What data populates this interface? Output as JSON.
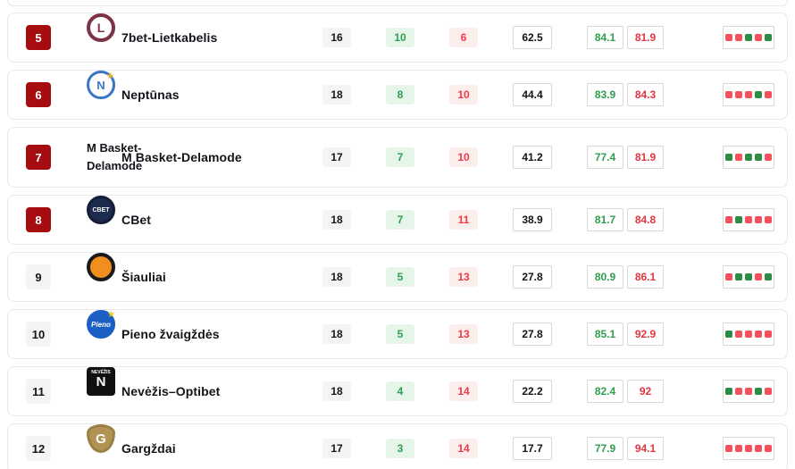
{
  "table": {
    "colors": {
      "rank_highlight_bg": "#a50d10",
      "rank_default_bg": "#f4f4f5",
      "wins_text": "#2f9e50",
      "wins_bg": "#e6f5ea",
      "losses_text": "#ee3a45",
      "losses_bg": "#fdeeee",
      "points_for_text": "#2f9e50",
      "points_against_text": "#e23540",
      "form_win_square": "#2e8b46",
      "form_loss_square": "#f4515c",
      "card_border": "#e8e8ea",
      "box_border": "#d8d8d8"
    },
    "rows": [
      {
        "rank": "5",
        "rank_highlight": true,
        "name": "7bet-Lietkabelis",
        "games": "16",
        "wins": "10",
        "losses": "6",
        "win_pct": "62.5",
        "pts_for": "84.1",
        "pts_against": "81.9",
        "form": [
          "L",
          "L",
          "W",
          "L",
          "W"
        ],
        "logo": {
          "shape": "circle",
          "bg": "#ffffff",
          "ring": "#7d3246",
          "ring_width": 4,
          "text": "L",
          "text_color": "#7d3246",
          "font_size": 14
        }
      },
      {
        "rank": "6",
        "rank_highlight": true,
        "name": "Neptūnas",
        "games": "18",
        "wins": "8",
        "losses": "10",
        "win_pct": "44.4",
        "pts_for": "83.9",
        "pts_against": "84.3",
        "form": [
          "L",
          "L",
          "L",
          "W",
          "L"
        ],
        "logo": {
          "shape": "circle",
          "bg": "#ffffff",
          "ring": "#3a76c4",
          "ring_width": 3,
          "text": "N",
          "text_color": "#3a76c4",
          "font_size": 13,
          "star_color": "#f0b429"
        }
      },
      {
        "rank": "7",
        "rank_highlight": true,
        "name": "M Basket-Delamode",
        "tall": true,
        "games": "17",
        "wins": "7",
        "losses": "10",
        "win_pct": "41.2",
        "pts_for": "77.4",
        "pts_against": "81.9",
        "form": [
          "W",
          "L",
          "W",
          "W",
          "L"
        ],
        "logo": {
          "shape": "alt",
          "alt_text": "M Basket-Delamode"
        }
      },
      {
        "rank": "8",
        "rank_highlight": true,
        "name": "CBet",
        "games": "18",
        "wins": "7",
        "losses": "11",
        "win_pct": "38.9",
        "pts_for": "81.7",
        "pts_against": "84.8",
        "form": [
          "L",
          "W",
          "L",
          "L",
          "L"
        ],
        "logo": {
          "shape": "circle",
          "bg": "#1d2b4e",
          "ring": "#141e38",
          "ring_width": 3,
          "text": "CBET",
          "text_color": "#ffffff",
          "font_size": 7
        }
      },
      {
        "rank": "9",
        "rank_highlight": false,
        "name": "Šiauliai",
        "games": "18",
        "wins": "5",
        "losses": "13",
        "win_pct": "27.8",
        "pts_for": "80.9",
        "pts_against": "86.1",
        "form": [
          "L",
          "W",
          "W",
          "L",
          "W"
        ],
        "logo": {
          "shape": "circle",
          "bg": "#f08e1e",
          "ring": "#1a1a1a",
          "ring_width": 4,
          "text": "",
          "text_color": "#1a1a1a",
          "font_size": 10
        }
      },
      {
        "rank": "10",
        "rank_highlight": false,
        "name": "Pieno žvaigždės",
        "games": "18",
        "wins": "5",
        "losses": "13",
        "win_pct": "27.8",
        "pts_for": "85.1",
        "pts_against": "92.9",
        "form": [
          "W",
          "L",
          "L",
          "L",
          "L"
        ],
        "logo": {
          "shape": "circle",
          "bg": "#1b5fc4",
          "ring": "#1b5fc4",
          "ring_width": 2,
          "text": "Pieno",
          "text_color": "#ffffff",
          "font_size": 8,
          "italic": true,
          "star_color": "#f5c518"
        }
      },
      {
        "rank": "11",
        "rank_highlight": false,
        "name": "Nevėžis–Optibet",
        "games": "18",
        "wins": "4",
        "losses": "14",
        "win_pct": "22.2",
        "pts_for": "82.4",
        "pts_against": "92",
        "form": [
          "W",
          "L",
          "L",
          "W",
          "L"
        ],
        "logo": {
          "shape": "square",
          "bg": "#111111",
          "ring": "#111111",
          "ring_width": 2,
          "text": "N",
          "text_color": "#ffffff",
          "font_size": 15,
          "top_label": "NEVĖŽIS",
          "top_label_color": "#ffffff"
        }
      },
      {
        "rank": "12",
        "rank_highlight": false,
        "name": "Gargždai",
        "games": "17",
        "wins": "3",
        "losses": "14",
        "win_pct": "17.7",
        "pts_for": "77.9",
        "pts_against": "94.1",
        "form": [
          "L",
          "L",
          "L",
          "L",
          "L"
        ],
        "logo": {
          "shape": "shield",
          "bg": "#b09355",
          "ring": "#9a7f46",
          "ring_width": 3,
          "text": "G",
          "text_color": "#ffffff",
          "font_size": 15
        }
      }
    ]
  }
}
